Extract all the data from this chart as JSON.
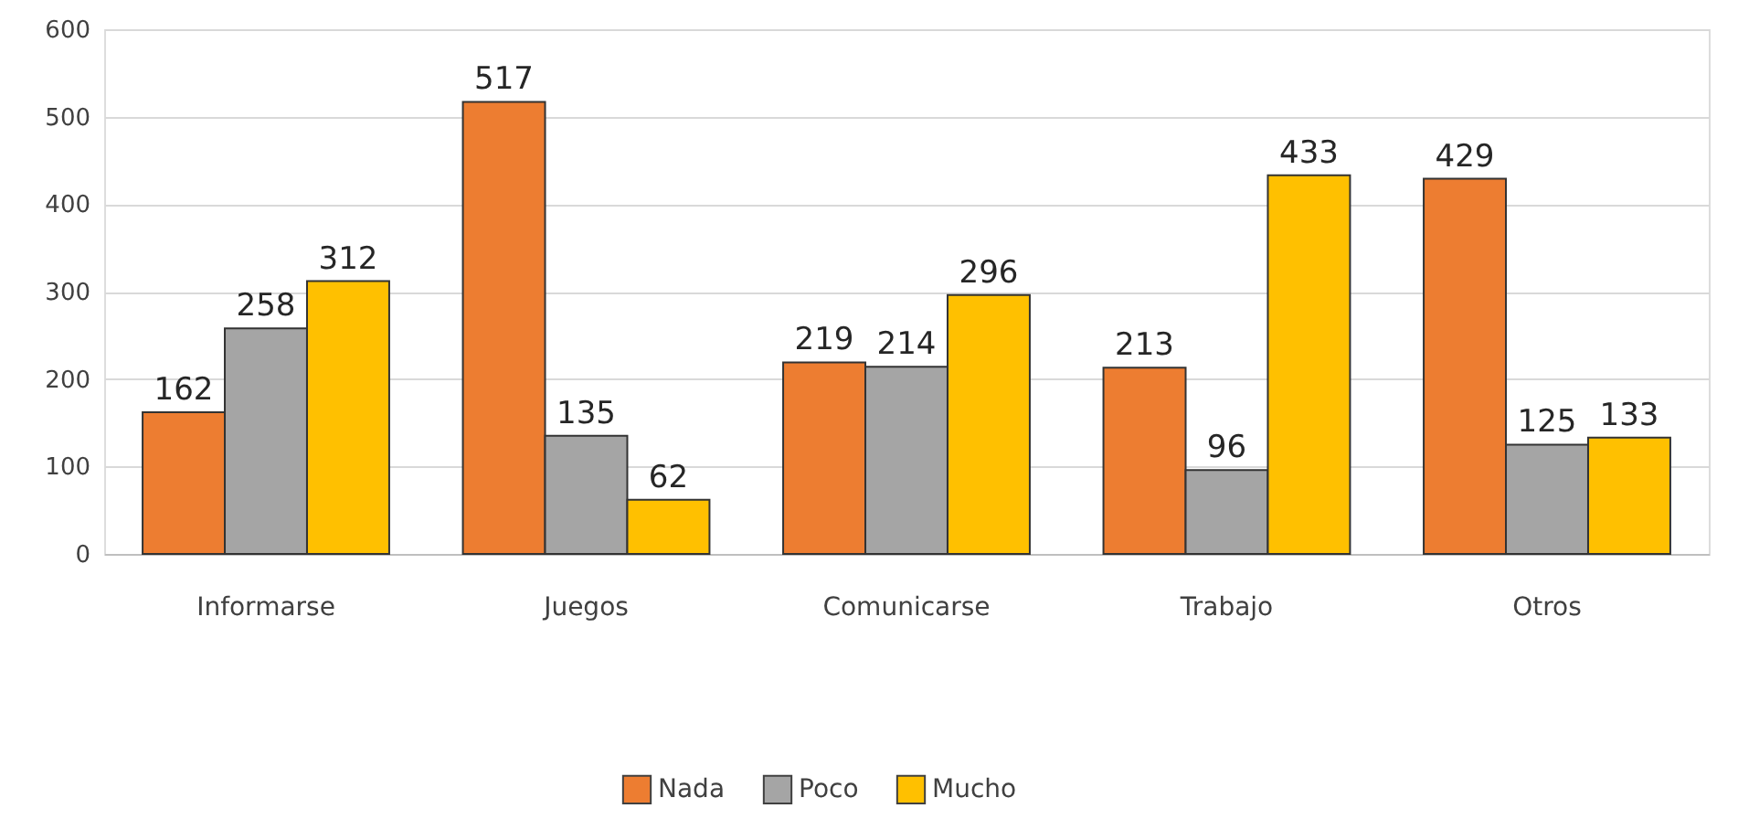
{
  "chart_data": {
    "type": "bar",
    "categories": [
      "Informarse",
      "Juegos",
      "Comunicarse",
      "Trabajo",
      "Otros"
    ],
    "series": [
      {
        "name": "Nada",
        "color": "#ed7d31",
        "values": [
          162,
          517,
          219,
          213,
          429
        ]
      },
      {
        "name": "Poco",
        "color": "#a5a5a5",
        "values": [
          258,
          135,
          214,
          96,
          125
        ]
      },
      {
        "name": "Mucho",
        "color": "#ffc000",
        "values": [
          312,
          62,
          296,
          433,
          133
        ]
      }
    ],
    "ylim": [
      0,
      600
    ],
    "yticks": [
      0,
      100,
      200,
      300,
      400,
      500,
      600
    ],
    "grid": "y",
    "legend": "bottom",
    "data_labels": true
  }
}
